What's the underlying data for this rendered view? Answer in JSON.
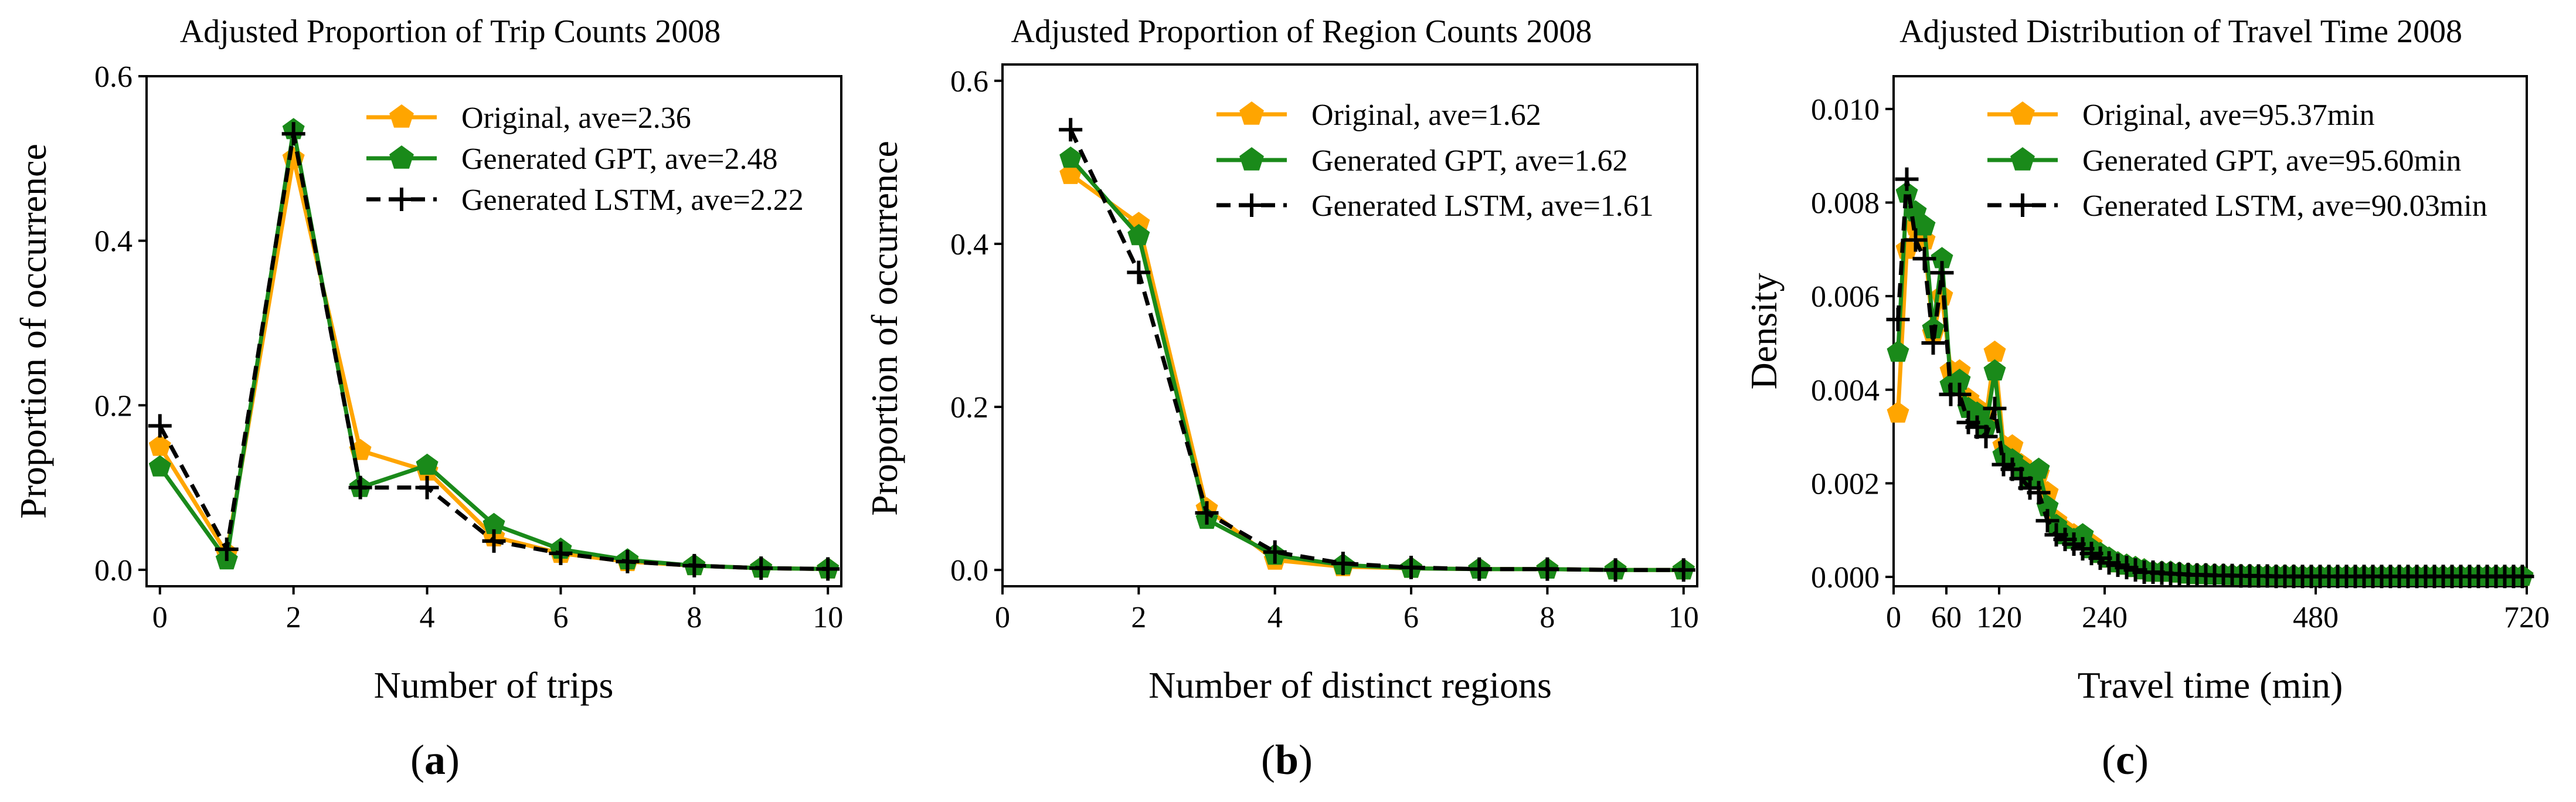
{
  "chart_data": [
    {
      "type": "line",
      "title": "Adjusted Proportion of Trip Counts 2008",
      "xlabel": "Number of trips",
      "ylabel": "Proportion of occurrence",
      "panel_label": "a",
      "xlim": [
        -0.2,
        10.2
      ],
      "ylim": [
        -0.02,
        0.6
      ],
      "xticks": [
        0,
        2,
        4,
        6,
        8,
        10
      ],
      "yticks": [
        0.0,
        0.2,
        0.4,
        0.6
      ],
      "ytick_labels": [
        "0.0",
        "0.2",
        "0.4",
        "0.6"
      ],
      "legend_position": "upper-right",
      "x": [
        0,
        1,
        2,
        3,
        4,
        5,
        6,
        7,
        8,
        9,
        10
      ],
      "series": [
        {
          "name": "Original, ave=2.36",
          "color": "#FFA500",
          "marker": "pentagon",
          "linestyle": "solid",
          "values": [
            0.15,
            0.02,
            0.5,
            0.145,
            0.12,
            0.04,
            0.02,
            0.01,
            0.005,
            0.002,
            0.001
          ]
        },
        {
          "name": "Generated GPT, ave=2.48",
          "color": "#1A8A1A",
          "marker": "pentagon",
          "linestyle": "solid",
          "values": [
            0.125,
            0.012,
            0.535,
            0.1,
            0.127,
            0.055,
            0.025,
            0.012,
            0.005,
            0.002,
            0.001
          ]
        },
        {
          "name": "Generated LSTM, ave=2.22",
          "color": "#000000",
          "marker": "plus",
          "linestyle": "dashed",
          "values": [
            0.175,
            0.025,
            0.53,
            0.1,
            0.1,
            0.035,
            0.02,
            0.01,
            0.005,
            0.002,
            0.001
          ]
        }
      ]
    },
    {
      "type": "line",
      "title": "Adjusted Proportion of Region Counts 2008",
      "xlabel": "Number of distinct regions",
      "ylabel": "Proportion of occurrence",
      "panel_label": "b",
      "xlim": [
        0,
        10.2
      ],
      "ylim": [
        -0.02,
        0.62
      ],
      "xticks": [
        0,
        2,
        4,
        6,
        8,
        10
      ],
      "yticks": [
        0.0,
        0.2,
        0.4,
        0.6
      ],
      "ytick_labels": [
        "0.0",
        "0.2",
        "0.4",
        "0.6"
      ],
      "legend_position": "upper-right",
      "x": [
        1,
        2,
        3,
        4,
        5,
        6,
        7,
        8,
        9,
        10
      ],
      "series": [
        {
          "name": "Original, ave=1.62",
          "color": "#FFA500",
          "marker": "pentagon",
          "linestyle": "solid",
          "values": [
            0.485,
            0.425,
            0.075,
            0.012,
            0.004,
            0.002,
            0.001,
            0.001,
            0.0,
            0.0
          ]
        },
        {
          "name": "Generated GPT, ave=1.62",
          "color": "#1A8A1A",
          "marker": "pentagon",
          "linestyle": "solid",
          "values": [
            0.505,
            0.41,
            0.062,
            0.018,
            0.006,
            0.002,
            0.001,
            0.001,
            0.0,
            0.0
          ]
        },
        {
          "name": "Generated LSTM, ave=1.61",
          "color": "#000000",
          "marker": "plus",
          "linestyle": "dashed",
          "values": [
            0.54,
            0.365,
            0.07,
            0.022,
            0.008,
            0.003,
            0.001,
            0.001,
            0.0,
            0.0
          ]
        }
      ]
    },
    {
      "type": "line",
      "title": "Adjusted Distribution of Travel Time 2008",
      "xlabel": "Travel time (min)",
      "ylabel": "Density",
      "panel_label": "c",
      "xlim": [
        0,
        720
      ],
      "ylim": [
        -0.0002,
        0.0107
      ],
      "xticks": [
        0,
        60,
        120,
        240,
        480,
        720
      ],
      "yticks": [
        0.0,
        0.002,
        0.004,
        0.006,
        0.008,
        0.01
      ],
      "ytick_labels": [
        "0.000",
        "0.002",
        "0.004",
        "0.006",
        "0.008",
        "0.010"
      ],
      "legend_position": "upper-right",
      "x": [
        5,
        15,
        25,
        35,
        45,
        55,
        65,
        75,
        85,
        95,
        105,
        115,
        125,
        135,
        145,
        155,
        165,
        175,
        185,
        195,
        205,
        215,
        225,
        235,
        245,
        255,
        265,
        275,
        285,
        295,
        305,
        315,
        325,
        335,
        345,
        355,
        365,
        375,
        385,
        395,
        405,
        415,
        425,
        435,
        445,
        455,
        465,
        475,
        485,
        495,
        505,
        515,
        525,
        535,
        545,
        555,
        565,
        575,
        585,
        595,
        605,
        615,
        625,
        635,
        645,
        655,
        665,
        675,
        685,
        695,
        705,
        715
      ],
      "series": [
        {
          "name": "Original, ave=95.37min",
          "color": "#FFA500",
          "marker": "pentagon",
          "linestyle": "solid",
          "values": [
            0.0035,
            0.007,
            0.0075,
            0.0072,
            0.0052,
            0.006,
            0.0044,
            0.0044,
            0.0038,
            0.0036,
            0.0034,
            0.0048,
            0.0028,
            0.0028,
            0.0024,
            0.0022,
            0.0022,
            0.0018,
            0.0012,
            0.001,
            0.0009,
            0.0008,
            0.0007,
            0.0005,
            0.0004,
            0.0003,
            0.00025,
            0.0002,
            0.00015,
            0.0001,
            0.0001,
            0.0001,
            8e-05,
            6e-05,
            5e-05,
            5e-05,
            4e-05,
            4e-05,
            3e-05,
            3e-05,
            3e-05,
            2e-05,
            2e-05,
            2e-05,
            2e-05,
            2e-05,
            1e-05,
            1e-05,
            1e-05,
            1e-05,
            1e-05,
            1e-05,
            1e-05,
            1e-05,
            1e-05,
            1e-05,
            1e-05,
            1e-05,
            1e-05,
            1e-05,
            1e-05,
            1e-05,
            1e-05,
            1e-05,
            1e-05,
            1e-05,
            1e-05,
            1e-05,
            1e-05,
            1e-05,
            1e-05,
            1e-05
          ]
        },
        {
          "name": "Generated GPT, ave=95.60min",
          "color": "#1A8A1A",
          "marker": "pentagon",
          "linestyle": "solid",
          "values": [
            0.0048,
            0.0082,
            0.0078,
            0.0075,
            0.0053,
            0.0068,
            0.0041,
            0.0042,
            0.0036,
            0.0035,
            0.0032,
            0.0044,
            0.0026,
            0.0025,
            0.0023,
            0.0021,
            0.0023,
            0.0015,
            0.0011,
            0.0009,
            0.0008,
            0.0009,
            0.0006,
            0.0005,
            0.0004,
            0.0003,
            0.00025,
            0.0002,
            0.00015,
            0.0001,
            0.0001,
            0.0001,
            8e-05,
            6e-05,
            5e-05,
            5e-05,
            4e-05,
            4e-05,
            3e-05,
            3e-05,
            3e-05,
            2e-05,
            2e-05,
            2e-05,
            2e-05,
            2e-05,
            1e-05,
            1e-05,
            1e-05,
            1e-05,
            1e-05,
            1e-05,
            1e-05,
            1e-05,
            1e-05,
            1e-05,
            1e-05,
            1e-05,
            1e-05,
            1e-05,
            1e-05,
            1e-05,
            1e-05,
            1e-05,
            1e-05,
            1e-05,
            1e-05,
            1e-05,
            1e-05,
            1e-05,
            1e-05,
            1e-05
          ]
        },
        {
          "name": "Generated LSTM, ave=90.03min",
          "color": "#000000",
          "marker": "plus",
          "linestyle": "dashed",
          "values": [
            0.0055,
            0.0085,
            0.0072,
            0.0068,
            0.005,
            0.0065,
            0.0039,
            0.0039,
            0.0033,
            0.0032,
            0.003,
            0.0036,
            0.0024,
            0.0023,
            0.0021,
            0.0019,
            0.0018,
            0.0012,
            0.0009,
            0.0008,
            0.0007,
            0.0006,
            0.0005,
            0.0004,
            0.0003,
            0.00025,
            0.0002,
            0.00015,
            0.0001,
            0.0001,
            8e-05,
            7e-05,
            6e-05,
            5e-05,
            4e-05,
            4e-05,
            3e-05,
            3e-05,
            3e-05,
            2e-05,
            2e-05,
            2e-05,
            2e-05,
            1e-05,
            1e-05,
            1e-05,
            1e-05,
            1e-05,
            1e-05,
            1e-05,
            1e-05,
            1e-05,
            1e-05,
            1e-05,
            1e-05,
            1e-05,
            1e-05,
            1e-05,
            1e-05,
            1e-05,
            1e-05,
            1e-05,
            1e-05,
            1e-05,
            1e-05,
            1e-05,
            1e-05,
            1e-05,
            1e-05,
            1e-05,
            1e-05,
            1e-05
          ]
        }
      ]
    }
  ]
}
